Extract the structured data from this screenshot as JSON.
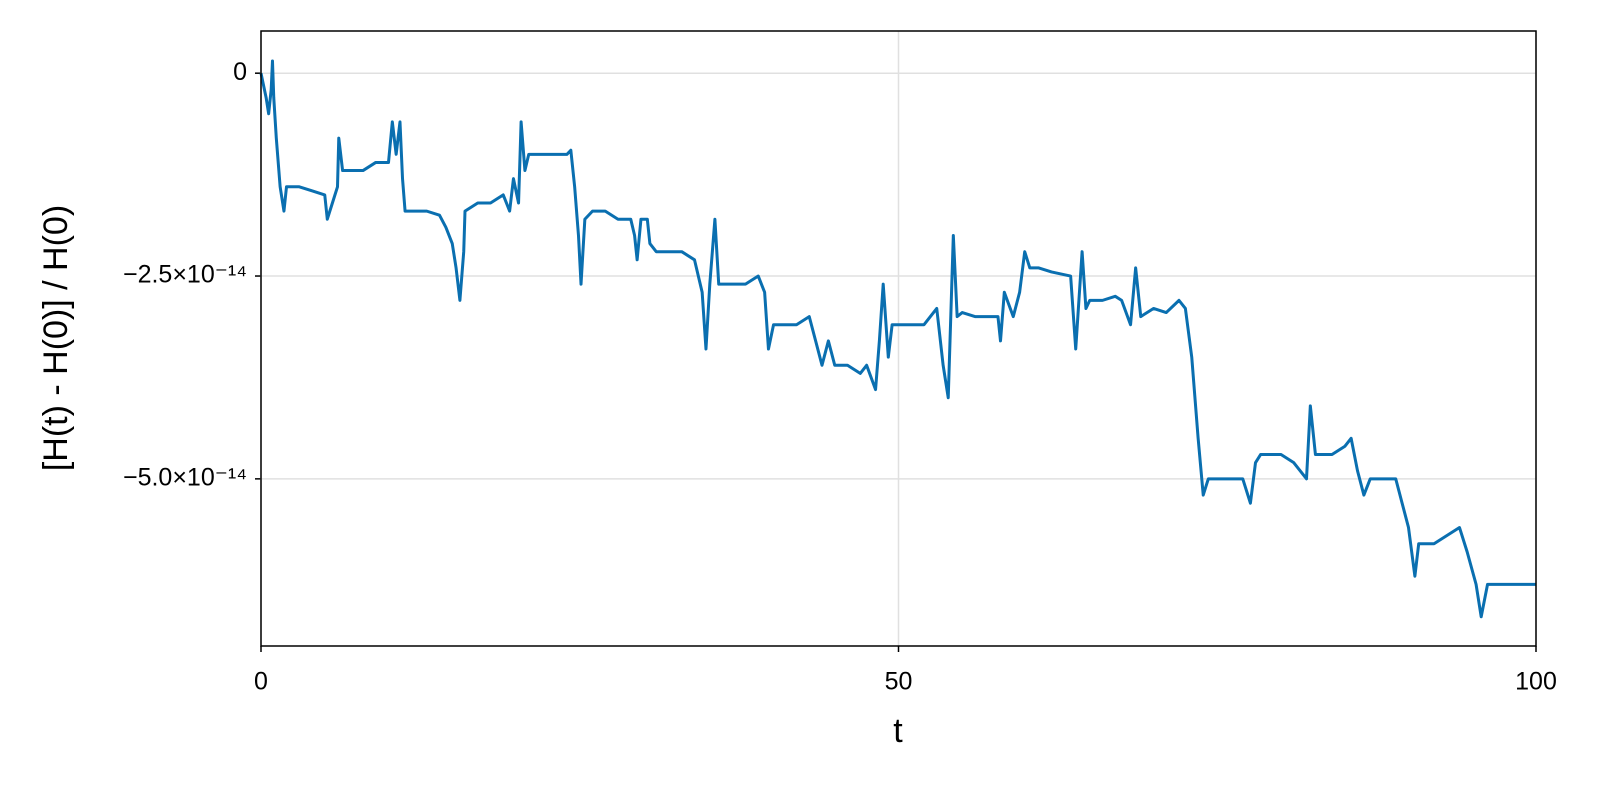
{
  "chart_data": {
    "type": "line",
    "xlabel": "t",
    "ylabel": "[H(t) - H(0)] / H(0)",
    "color": "#0a6fb0",
    "grid": true,
    "xlim": [
      0,
      100
    ],
    "xticks": [
      0,
      50,
      100
    ],
    "ylim": [
      5.2e-15,
      -7.06e-14
    ],
    "yticks": [
      0,
      {
        "value": -2.5e-14,
        "label": "−2.5×10⁻¹⁴"
      },
      {
        "value": -5e-14,
        "label": "−5.0×10⁻¹⁴"
      }
    ],
    "x": [
      0,
      0.4,
      0.6,
      0.8,
      0.9,
      1.0,
      1.2,
      1.5,
      1.8,
      2,
      3,
      4,
      5,
      5.2,
      5.6,
      6,
      6.1,
      6.4,
      7,
      8,
      9,
      10,
      10.3,
      10.6,
      10.9,
      11.1,
      11.3,
      12,
      13,
      14,
      14.5,
      15,
      15.3,
      15.6,
      15.9,
      16,
      17,
      18,
      19,
      19.5,
      19.8,
      20.2,
      20.4,
      20.7,
      21,
      23,
      24,
      24.3,
      24.6,
      24.9,
      25.1,
      25.4,
      26,
      27,
      28,
      29,
      29.3,
      29.5,
      29.8,
      30.3,
      30.5,
      31,
      33,
      34,
      34.6,
      34.9,
      35.2,
      35.6,
      35.9,
      37,
      38,
      39,
      39.5,
      39.8,
      40.2,
      41,
      42,
      43,
      43.5,
      44,
      44.5,
      45,
      46,
      47,
      47.5,
      48.2,
      48.5,
      48.8,
      49.2,
      49.5,
      50,
      51,
      52,
      53,
      53.5,
      53.9,
      54.3,
      54.6,
      55,
      56,
      57,
      57.8,
      58,
      58.3,
      59,
      59.5,
      59.9,
      60.3,
      61,
      62,
      63.5,
      63.9,
      64.4,
      64.7,
      65,
      66,
      67,
      67.5,
      68.2,
      68.6,
      69,
      70,
      71,
      72,
      72.5,
      73,
      73.5,
      73.9,
      74.3,
      75,
      76,
      77,
      77.6,
      78,
      78.4,
      79,
      80,
      81,
      82,
      82.3,
      82.7,
      83,
      84,
      85,
      85.5,
      86,
      86.5,
      87,
      88,
      89,
      89.5,
      90,
      90.5,
      90.8,
      92,
      93,
      94,
      94.6,
      95.3,
      95.7,
      96.2,
      97,
      100
    ],
    "values": [
      0,
      -3e-15,
      -5e-15,
      -2e-15,
      1.5e-15,
      -3e-15,
      -8e-15,
      -1.4e-14,
      -1.7e-14,
      -1.4e-14,
      -1.4e-14,
      -1.45e-14,
      -1.5e-14,
      -1.8e-14,
      -1.6e-14,
      -1.4e-14,
      -8e-15,
      -1.2e-14,
      -1.2e-14,
      -1.2e-14,
      -1.1e-14,
      -1.1e-14,
      -6e-15,
      -1e-14,
      -6e-15,
      -1.3e-14,
      -1.7e-14,
      -1.7e-14,
      -1.7e-14,
      -1.75e-14,
      -1.9e-14,
      -2.1e-14,
      -2.4e-14,
      -2.8e-14,
      -2.2e-14,
      -1.7e-14,
      -1.6e-14,
      -1.6e-14,
      -1.5e-14,
      -1.7e-14,
      -1.3e-14,
      -1.6e-14,
      -6e-15,
      -1.2e-14,
      -1e-14,
      -1e-14,
      -1e-14,
      -9.5e-15,
      -1.4e-14,
      -2e-14,
      -2.6e-14,
      -1.8e-14,
      -1.7e-14,
      -1.7e-14,
      -1.8e-14,
      -1.8e-14,
      -2e-14,
      -2.3e-14,
      -1.8e-14,
      -1.8e-14,
      -2.1e-14,
      -2.2e-14,
      -2.2e-14,
      -2.3e-14,
      -2.7e-14,
      -3.4e-14,
      -2.6e-14,
      -1.8e-14,
      -2.6e-14,
      -2.6e-14,
      -2.6e-14,
      -2.5e-14,
      -2.7e-14,
      -3.4e-14,
      -3.1e-14,
      -3.1e-14,
      -3.1e-14,
      -3e-14,
      -3.3e-14,
      -3.6e-14,
      -3.3e-14,
      -3.6e-14,
      -3.6e-14,
      -3.7e-14,
      -3.6e-14,
      -3.9e-14,
      -3.3e-14,
      -2.6e-14,
      -3.5e-14,
      -3.1e-14,
      -3.1e-14,
      -3.1e-14,
      -3.1e-14,
      -2.9e-14,
      -3.6e-14,
      -4e-14,
      -2e-14,
      -3e-14,
      -2.95e-14,
      -3e-14,
      -3e-14,
      -3e-14,
      -3.3e-14,
      -2.7e-14,
      -3e-14,
      -2.7e-14,
      -2.2e-14,
      -2.4e-14,
      -2.4e-14,
      -2.45e-14,
      -2.5e-14,
      -3.4e-14,
      -2.2e-14,
      -2.9e-14,
      -2.8e-14,
      -2.8e-14,
      -2.75e-14,
      -2.8e-14,
      -3.1e-14,
      -2.4e-14,
      -3e-14,
      -2.9e-14,
      -2.95e-14,
      -2.8e-14,
      -2.9e-14,
      -3.5e-14,
      -4.5e-14,
      -5.2e-14,
      -5e-14,
      -5e-14,
      -5e-14,
      -5e-14,
      -5.3e-14,
      -4.8e-14,
      -4.7e-14,
      -4.7e-14,
      -4.7e-14,
      -4.8e-14,
      -5e-14,
      -4.1e-14,
      -4.7e-14,
      -4.7e-14,
      -4.7e-14,
      -4.6e-14,
      -4.5e-14,
      -4.9e-14,
      -5.2e-14,
      -5e-14,
      -5e-14,
      -5e-14,
      -5.3e-14,
      -5.6e-14,
      -6.2e-14,
      -5.8e-14,
      -5.8e-14,
      -5.7e-14,
      -5.6e-14,
      -5.9e-14,
      -6.3e-14,
      -6.7e-14,
      -6.3e-14,
      -6.3e-14,
      -6.3e-14
    ]
  }
}
